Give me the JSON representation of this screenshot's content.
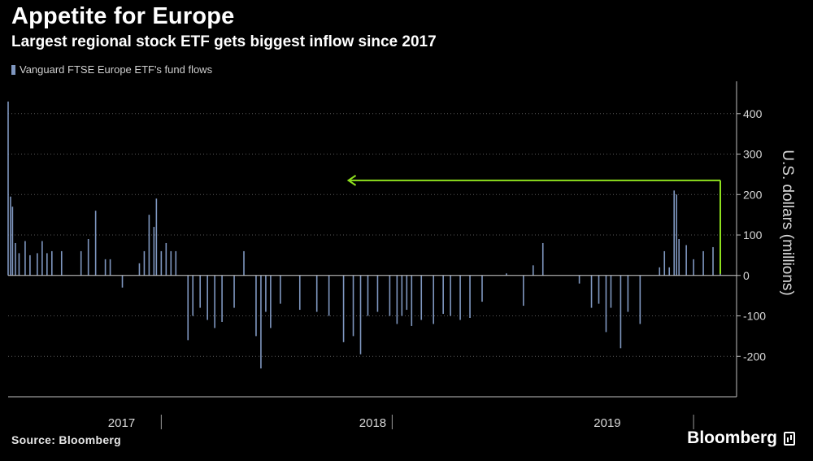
{
  "header": {
    "title": "Appetite for Europe",
    "subtitle": "Largest regional stock ETF gets biggest inflow since 2017"
  },
  "footer": {
    "source": "Source: Bloomberg",
    "brand": "Bloomberg"
  },
  "colors": {
    "background": "#000000",
    "bar": "#7f97c0",
    "arrow": "#8ee01e",
    "axis": "#bfbfbf"
  },
  "chart_data": {
    "type": "bar",
    "series": [
      {
        "name": "Vanguard FTSE Europe ETF's fund flows",
        "points": [
          [
            2017.0,
            430
          ],
          [
            2017.01,
            195
          ],
          [
            2017.018,
            170
          ],
          [
            2017.03,
            80
          ],
          [
            2017.045,
            55
          ],
          [
            2017.07,
            85
          ],
          [
            2017.09,
            50
          ],
          [
            2017.12,
            55
          ],
          [
            2017.14,
            85
          ],
          [
            2017.16,
            55
          ],
          [
            2017.18,
            60
          ],
          [
            2017.22,
            60
          ],
          [
            2017.3,
            60
          ],
          [
            2017.33,
            90
          ],
          [
            2017.36,
            160
          ],
          [
            2017.4,
            40
          ],
          [
            2017.42,
            40
          ],
          [
            2017.47,
            -30
          ],
          [
            2017.54,
            30
          ],
          [
            2017.56,
            60
          ],
          [
            2017.58,
            150
          ],
          [
            2017.6,
            120
          ],
          [
            2017.61,
            190
          ],
          [
            2017.63,
            60
          ],
          [
            2017.65,
            80
          ],
          [
            2017.67,
            60
          ],
          [
            2017.69,
            60
          ],
          [
            2017.74,
            -160
          ],
          [
            2017.76,
            -100
          ],
          [
            2017.79,
            -80
          ],
          [
            2017.82,
            -110
          ],
          [
            2017.85,
            -130
          ],
          [
            2017.88,
            -115
          ],
          [
            2017.93,
            -80
          ],
          [
            2017.97,
            60
          ],
          [
            2018.02,
            -150
          ],
          [
            2018.04,
            -230
          ],
          [
            2018.06,
            -90
          ],
          [
            2018.08,
            -130
          ],
          [
            2018.12,
            -70
          ],
          [
            2018.2,
            -85
          ],
          [
            2018.27,
            -90
          ],
          [
            2018.32,
            -100
          ],
          [
            2018.38,
            -165
          ],
          [
            2018.42,
            -150
          ],
          [
            2018.45,
            -195
          ],
          [
            2018.48,
            -100
          ],
          [
            2018.52,
            -90
          ],
          [
            2018.57,
            -100
          ],
          [
            2018.6,
            -120
          ],
          [
            2018.62,
            -100
          ],
          [
            2018.64,
            -85
          ],
          [
            2018.66,
            -125
          ],
          [
            2018.7,
            -110
          ],
          [
            2018.75,
            -120
          ],
          [
            2018.79,
            -95
          ],
          [
            2018.82,
            -100
          ],
          [
            2018.86,
            -110
          ],
          [
            2018.9,
            -105
          ],
          [
            2018.95,
            -65
          ],
          [
            2019.05,
            5
          ],
          [
            2019.12,
            -75
          ],
          [
            2019.16,
            25
          ],
          [
            2019.2,
            80
          ],
          [
            2019.35,
            -20
          ],
          [
            2019.4,
            -80
          ],
          [
            2019.43,
            -70
          ],
          [
            2019.46,
            -140
          ],
          [
            2019.48,
            -80
          ],
          [
            2019.52,
            -180
          ],
          [
            2019.55,
            -90
          ],
          [
            2019.6,
            -120
          ],
          [
            2019.68,
            20
          ],
          [
            2019.7,
            60
          ],
          [
            2019.72,
            20
          ],
          [
            2019.74,
            210
          ],
          [
            2019.75,
            200
          ],
          [
            2019.76,
            90
          ],
          [
            2019.79,
            75
          ],
          [
            2019.82,
            40
          ],
          [
            2019.86,
            60
          ],
          [
            2019.9,
            70
          ],
          [
            2019.93,
            235
          ]
        ]
      }
    ],
    "xlim": [
      2017.0,
      2019.93
    ],
    "ylim": [
      -300,
      480
    ],
    "yticks": [
      -200,
      -100,
      0,
      100,
      200,
      300,
      400
    ],
    "ytick_labels": [
      "-200",
      "-100",
      "0",
      "100",
      "200",
      "300",
      "400"
    ],
    "years": [
      "2017",
      "2018",
      "2019"
    ],
    "year_bounds": [
      [
        2017.0,
        2018.0
      ],
      [
        2018.0,
        2019.0
      ],
      [
        2019.0,
        2019.93
      ]
    ],
    "year_dividers": [
      2017.63,
      2018.58,
      2019.82
    ],
    "xlabel": "",
    "ylabel": "U.S. dollars (millions)",
    "grid": "horizontal dotted",
    "legend_position": "top-left",
    "annotations": [
      {
        "type": "arrow",
        "from": [
          2019.93,
          235
        ],
        "to": [
          2018.4,
          235
        ]
      }
    ]
  }
}
